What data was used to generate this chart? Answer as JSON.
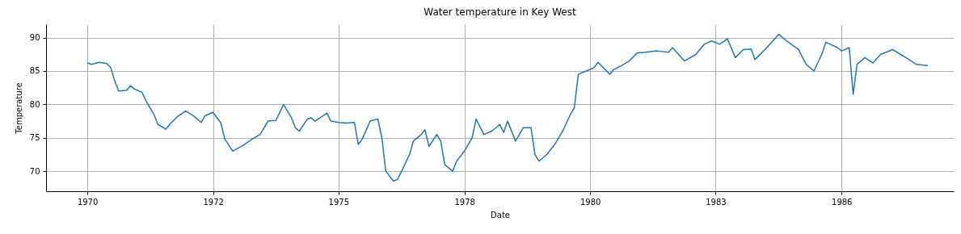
{
  "chart_data": {
    "type": "line",
    "title": "Water temperature in Key West",
    "xlabel": "Date",
    "ylabel": "Temperature",
    "x": [
      "1970-01",
      "1970-02",
      "1970-04",
      "1970-06",
      "1970-07",
      "1970-08",
      "1970-09",
      "1970-11",
      "1970-12",
      "1971-01",
      "1971-03",
      "1971-04",
      "1971-06",
      "1971-07",
      "1971-09",
      "1971-10",
      "1971-12",
      "1972-02",
      "1972-04",
      "1972-06",
      "1972-07",
      "1972-09",
      "1972-11",
      "1972-12",
      "1973-02",
      "1973-05",
      "1973-07",
      "1973-09",
      "1973-11",
      "1974-01",
      "1974-03",
      "1974-05",
      "1974-06",
      "1974-07",
      "1974-09",
      "1974-10",
      "1974-11",
      "1975-02",
      "1975-03",
      "1975-05",
      "1975-07",
      "1975-09",
      "1975-10",
      "1975-11",
      "1976-01",
      "1976-03",
      "1976-04",
      "1976-05",
      "1976-07",
      "1976-08",
      "1976-09",
      "1976-11",
      "1976-12",
      "1977-02",
      "1977-03",
      "1977-04",
      "1977-06",
      "1977-07",
      "1977-08",
      "1977-10",
      "1977-11",
      "1978-01",
      "1978-03",
      "1978-04",
      "1978-06",
      "1978-08",
      "1978-10",
      "1978-11",
      "1978-12",
      "1979-02",
      "1979-04",
      "1979-06",
      "1979-07",
      "1979-08",
      "1979-10",
      "1979-12",
      "1980-02",
      "1980-04",
      "1980-05",
      "1980-06",
      "1980-08",
      "1980-10",
      "1980-11",
      "1981-02",
      "1981-03",
      "1981-05",
      "1981-07",
      "1981-09",
      "1981-11",
      "1982-02",
      "1982-05",
      "1982-06",
      "1982-09",
      "1982-12",
      "1983-02",
      "1983-04",
      "1983-06",
      "1983-08",
      "1983-10",
      "1983-12",
      "1984-02",
      "1984-03",
      "1984-06",
      "1984-09",
      "1984-11",
      "1985-02",
      "1985-04",
      "1985-06",
      "1985-08",
      "1985-09",
      "1985-12",
      "1986-01",
      "1986-03",
      "1986-04",
      "1986-05",
      "1986-07",
      "1986-09",
      "1986-11",
      "1987-02",
      "1987-04",
      "1987-06",
      "1987-08",
      "1987-11"
    ],
    "series": [
      {
        "color": "#1f77b4",
        "values": [
          86.2,
          86.0,
          86.3,
          86.1,
          85.5,
          83.5,
          82.0,
          82.1,
          82.8,
          82.3,
          81.8,
          80.5,
          78.5,
          77.0,
          76.3,
          77.0,
          78.2,
          79.0,
          78.3,
          77.3,
          78.3,
          78.8,
          77.2,
          74.8,
          73.0,
          74.0,
          74.8,
          75.5,
          77.5,
          77.6,
          80.0,
          78.0,
          76.5,
          76.0,
          77.8,
          78.0,
          77.5,
          78.7,
          77.5,
          77.3,
          77.2,
          77.3,
          74.0,
          74.8,
          77.5,
          77.8,
          75.0,
          70.0,
          68.5,
          68.8,
          70.0,
          72.5,
          74.5,
          75.5,
          76.2,
          73.7,
          75.5,
          74.5,
          71.0,
          70.0,
          71.5,
          73.0,
          75.0,
          77.8,
          75.5,
          76.0,
          77.0,
          75.8,
          77.5,
          74.5,
          76.5,
          76.5,
          72.5,
          71.5,
          72.5,
          74.0,
          76.0,
          78.5,
          79.5,
          84.5,
          85.0,
          85.5,
          86.3,
          84.5,
          85.2,
          85.8,
          86.5,
          87.7,
          87.8,
          88.0,
          87.8,
          88.5,
          86.5,
          87.5,
          89.0,
          89.5,
          89.0,
          89.8,
          87.0,
          88.2,
          88.3,
          86.7,
          88.5,
          90.5,
          89.5,
          88.2,
          86.0,
          85.0,
          87.5,
          89.3,
          88.5,
          88.0,
          88.5,
          81.5,
          86.0,
          87.0,
          86.2,
          87.5,
          88.2,
          87.5,
          86.8,
          86.0,
          85.8
        ]
      }
    ],
    "xlim": [
      "1969-02-15",
      "1988-05-19"
    ],
    "xticks": [
      {
        "value": "1970-01-01",
        "label": "1970"
      },
      {
        "value": "1972-09-01",
        "label": "1972"
      },
      {
        "value": "1975-05-01",
        "label": "1975"
      },
      {
        "value": "1978-01-01",
        "label": "1978"
      },
      {
        "value": "1980-09-01",
        "label": "1980"
      },
      {
        "value": "1983-05-01",
        "label": "1983"
      },
      {
        "value": "1986-01-01",
        "label": "1986"
      }
    ],
    "ylim": [
      67,
      92
    ],
    "yticks": [
      70,
      75,
      80,
      85,
      90
    ],
    "grid": true
  }
}
